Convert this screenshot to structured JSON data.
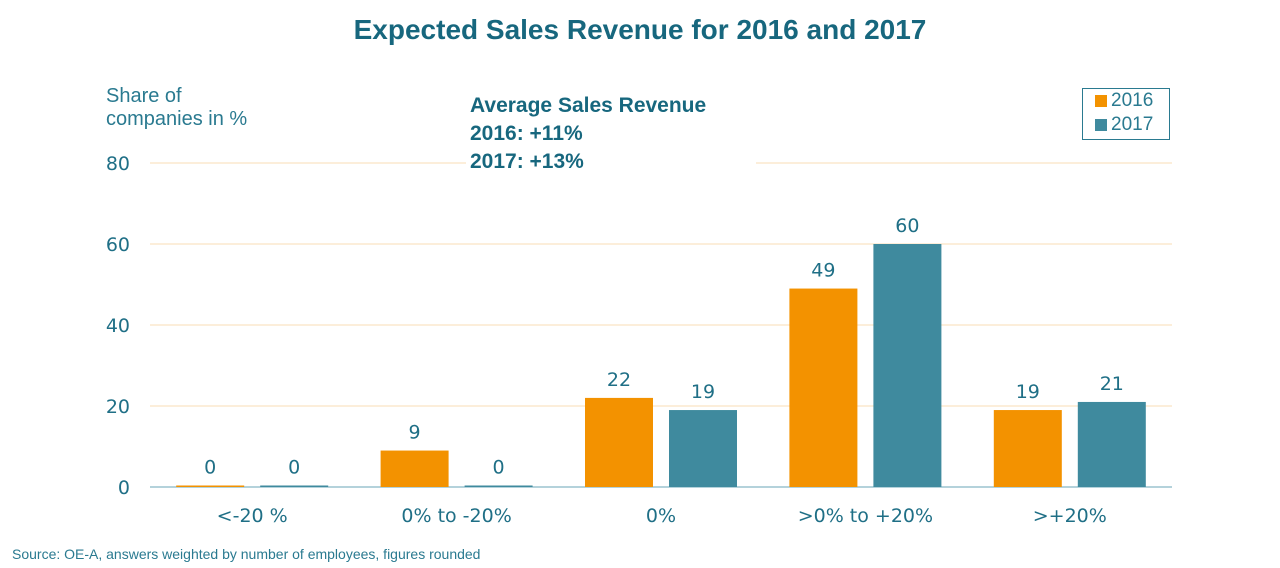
{
  "chart_data": {
    "type": "bar",
    "title": "Expected Sales Revenue for 2016 and 2017",
    "ylabel": "Share of companies in %",
    "xlabel": "",
    "categories": [
      "<-20 %",
      "0% to -20%",
      "0%",
      ">0% to +20%",
      ">+20%"
    ],
    "series": [
      {
        "name": "2016",
        "color": "#F39200",
        "values": [
          0,
          9,
          22,
          49,
          19
        ]
      },
      {
        "name": "2017",
        "color": "#3F8A9E",
        "values": [
          0,
          0,
          19,
          60,
          21
        ]
      }
    ],
    "ylim": [
      0,
      80
    ],
    "yticks": [
      0,
      20,
      40,
      60,
      80
    ],
    "grid": true,
    "legend": "top-right",
    "annotation": {
      "heading": "Average  Sales Revenue",
      "line1": "2016: +11%",
      "line2": "2017: +13%"
    },
    "source": "Source: OE-A, answers weighted by number of employees, figures rounded"
  },
  "colors": {
    "text": "#1F6F86",
    "grid": "#FBE3C4",
    "axis": "#9CC3CF"
  }
}
